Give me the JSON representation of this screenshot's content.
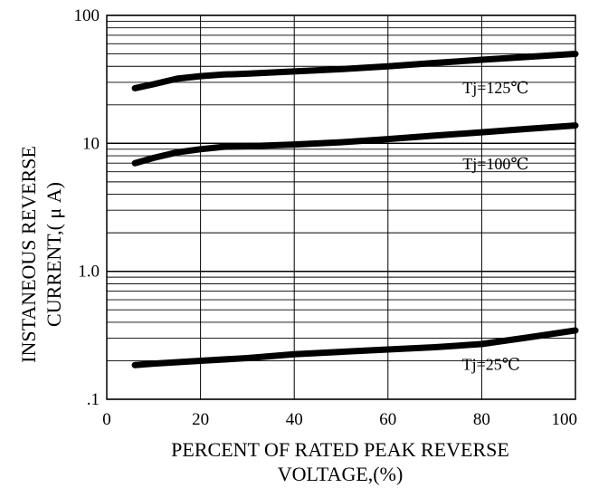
{
  "chart_data": {
    "type": "line",
    "xlabel_lines": [
      "PERCENT OF RATED PEAK REVERSE",
      "VOLTAGE,(%)"
    ],
    "ylabel_lines": [
      "INSTANEOUS REVERSE",
      "CURRENT,( μ A)"
    ],
    "x_ticks": [
      "0",
      "20",
      "40",
      "60",
      "80",
      "100"
    ],
    "y_ticks": [
      ".1",
      "1.0",
      "10",
      "100"
    ],
    "xlim": [
      0,
      100
    ],
    "ylim": [
      0.1,
      100
    ],
    "y_scale": "log",
    "grid": true,
    "series": [
      {
        "name": "Tj=125℃",
        "x": [
          6,
          10,
          15,
          20,
          25,
          30,
          40,
          50,
          60,
          70,
          80,
          90,
          100
        ],
        "y": [
          27,
          29,
          32,
          33.5,
          34.5,
          35,
          36.5,
          38,
          40,
          42.5,
          45,
          47.5,
          50
        ]
      },
      {
        "name": "Tj=100℃",
        "x": [
          6,
          10,
          15,
          20,
          25,
          30,
          40,
          50,
          60,
          70,
          80,
          90,
          100
        ],
        "y": [
          7,
          7.7,
          8.5,
          9,
          9.4,
          9.5,
          9.8,
          10.2,
          10.8,
          11.5,
          12.2,
          13,
          13.8
        ]
      },
      {
        "name": "Tj=25℃",
        "x": [
          6,
          10,
          20,
          30,
          40,
          50,
          60,
          70,
          80,
          90,
          100
        ],
        "y": [
          0.185,
          0.19,
          0.2,
          0.21,
          0.225,
          0.235,
          0.245,
          0.255,
          0.27,
          0.305,
          0.345
        ]
      }
    ]
  }
}
